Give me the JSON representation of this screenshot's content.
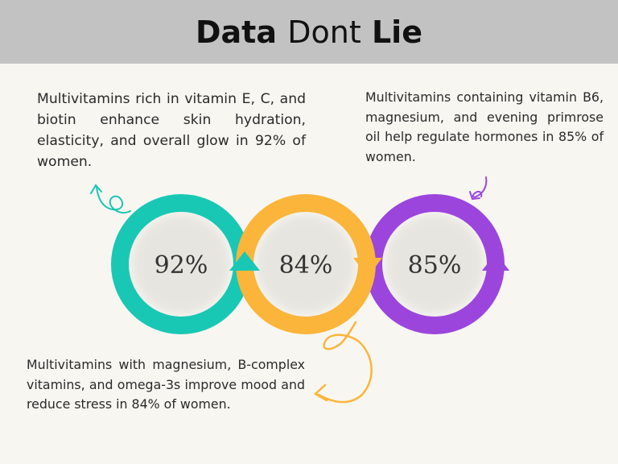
{
  "title": {
    "bold_1": "Data",
    "light": "Dont",
    "bold_2": "Lie"
  },
  "rings": [
    {
      "label": "92%",
      "color": "#19c8b4"
    },
    {
      "label": "84%",
      "color": "#fbb53a"
    },
    {
      "label": "85%",
      "color": "#9c45dc"
    }
  ],
  "descriptions": {
    "skin": "Multivitamins rich in vitamin E, C, and biotin enhance skin hydration, elasticity, and overall glow in 92% of women.",
    "hormones": "Multivitamins containing vitamin B6, magnesium, and evening primrose oil help regulate hormones in 85% of women.",
    "mood": "Multivitamins with magnesium, B-complex vitamins, and omega-3s improve mood and reduce stress in 84% of women."
  },
  "icons": {
    "teal_arrow": "curly-arrow-icon",
    "purple_arrow": "curly-arrow-icon",
    "orange_arrow": "curly-arrow-icon"
  }
}
